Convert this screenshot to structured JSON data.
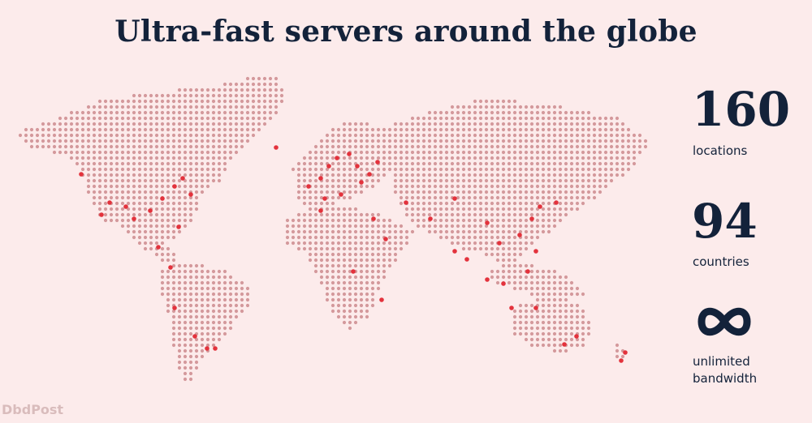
{
  "header": {
    "title": "Ultra-fast servers around the globe"
  },
  "stats": {
    "locations": {
      "value": "160",
      "label": "locations"
    },
    "countries": {
      "value": "94",
      "label": "countries"
    },
    "bandwidth": {
      "icon": "infinity-icon",
      "label_line1": "unlimited",
      "label_line2": "bandwidth"
    }
  },
  "watermark": "DbdPost",
  "colors": {
    "background": "#fcebeb",
    "text": "#13223a",
    "land_dot": "#d4999c",
    "server_dot": "#e3323c"
  }
}
